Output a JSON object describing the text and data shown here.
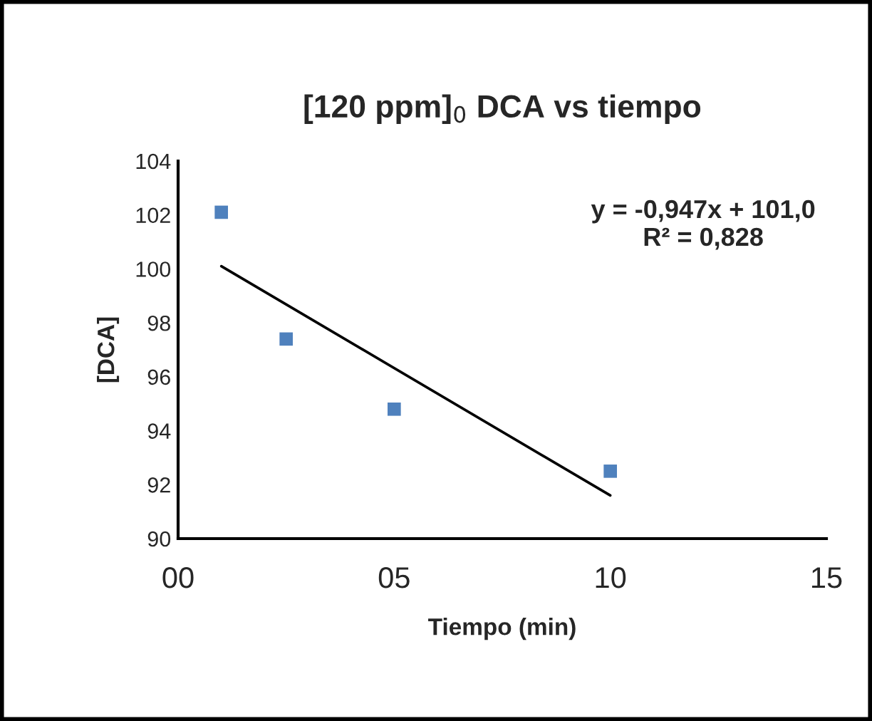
{
  "chart_data": {
    "type": "scatter",
    "title": "[120 ppm]$_{0}$ DCA vs tiempo",
    "xlabel": "Tiempo (min)",
    "ylabel": "[DCA]",
    "xlim": [
      0,
      15
    ],
    "xticks": [
      {
        "value": 0,
        "label": "00"
      },
      {
        "value": 5,
        "label": "05"
      },
      {
        "value": 10,
        "label": "10"
      },
      {
        "value": 15,
        "label": "15"
      }
    ],
    "ylim": [
      90,
      104
    ],
    "yticks": [
      90,
      92,
      94,
      96,
      98,
      100,
      102,
      104
    ],
    "grid": false,
    "legend": false,
    "series": [
      {
        "marker": "square",
        "color": "#4f81bd",
        "x": [
          1,
          2.5,
          5,
          10
        ],
        "values": [
          102.1,
          97.4,
          94.8,
          92.5
        ]
      },
      {
        "type": "line",
        "color": "#000000",
        "x": [
          1,
          10
        ],
        "values": [
          100.1,
          91.6
        ]
      }
    ],
    "annotations": [
      "y = -0,947x + 101,0\nR² = 0,828"
    ]
  }
}
